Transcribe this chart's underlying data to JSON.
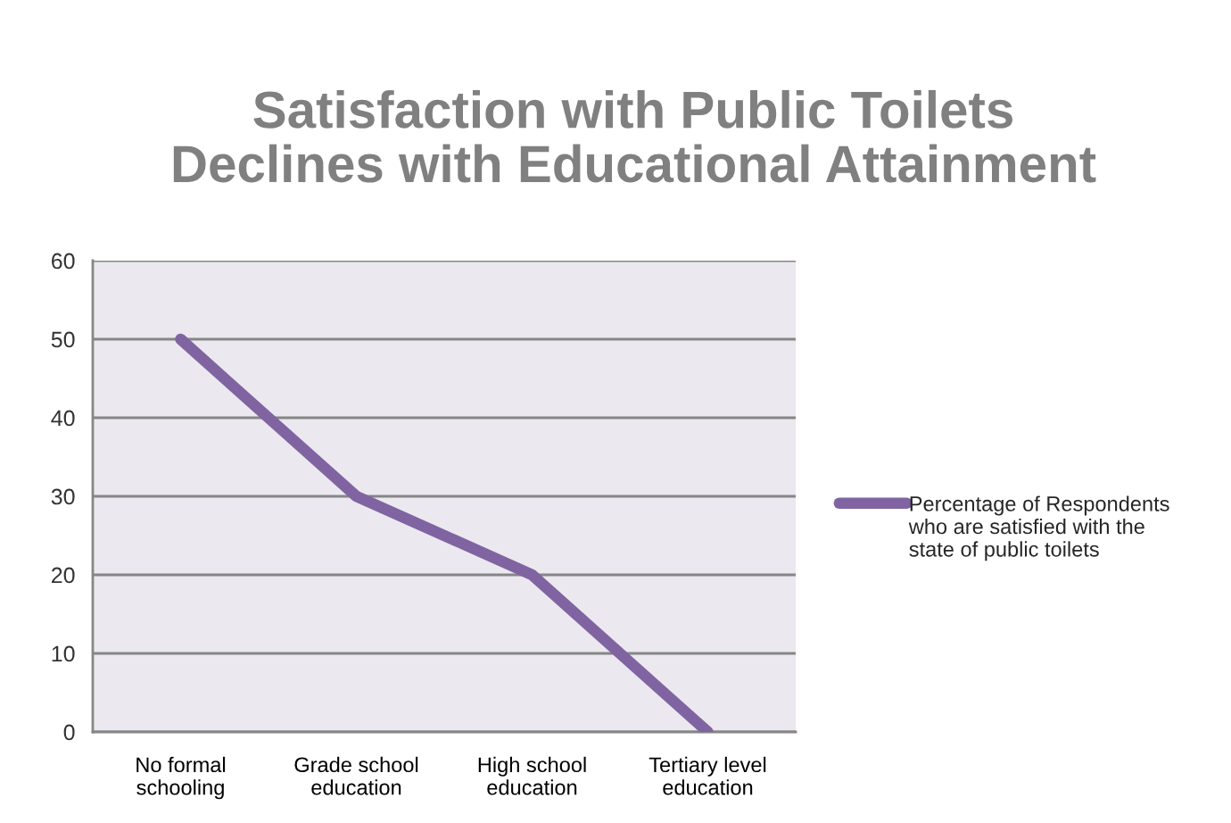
{
  "chart_data": {
    "type": "line",
    "title": "Satisfaction with Public Toilets Declines with Educational Attainment",
    "categories": [
      "No formal schooling",
      "Grade school education",
      "High school education",
      "Tertiary level education"
    ],
    "series": [
      {
        "name": "Percentage of Respondents who are satisfied with the state of public toilets",
        "color": "#8064a2",
        "values": [
          50,
          30,
          20,
          0
        ]
      }
    ],
    "ylim": [
      0,
      60
    ],
    "yticks": [
      0,
      10,
      20,
      30,
      40,
      50,
      60
    ],
    "grid": "y",
    "legend": "right",
    "marker": "none",
    "line_style": "solid"
  }
}
